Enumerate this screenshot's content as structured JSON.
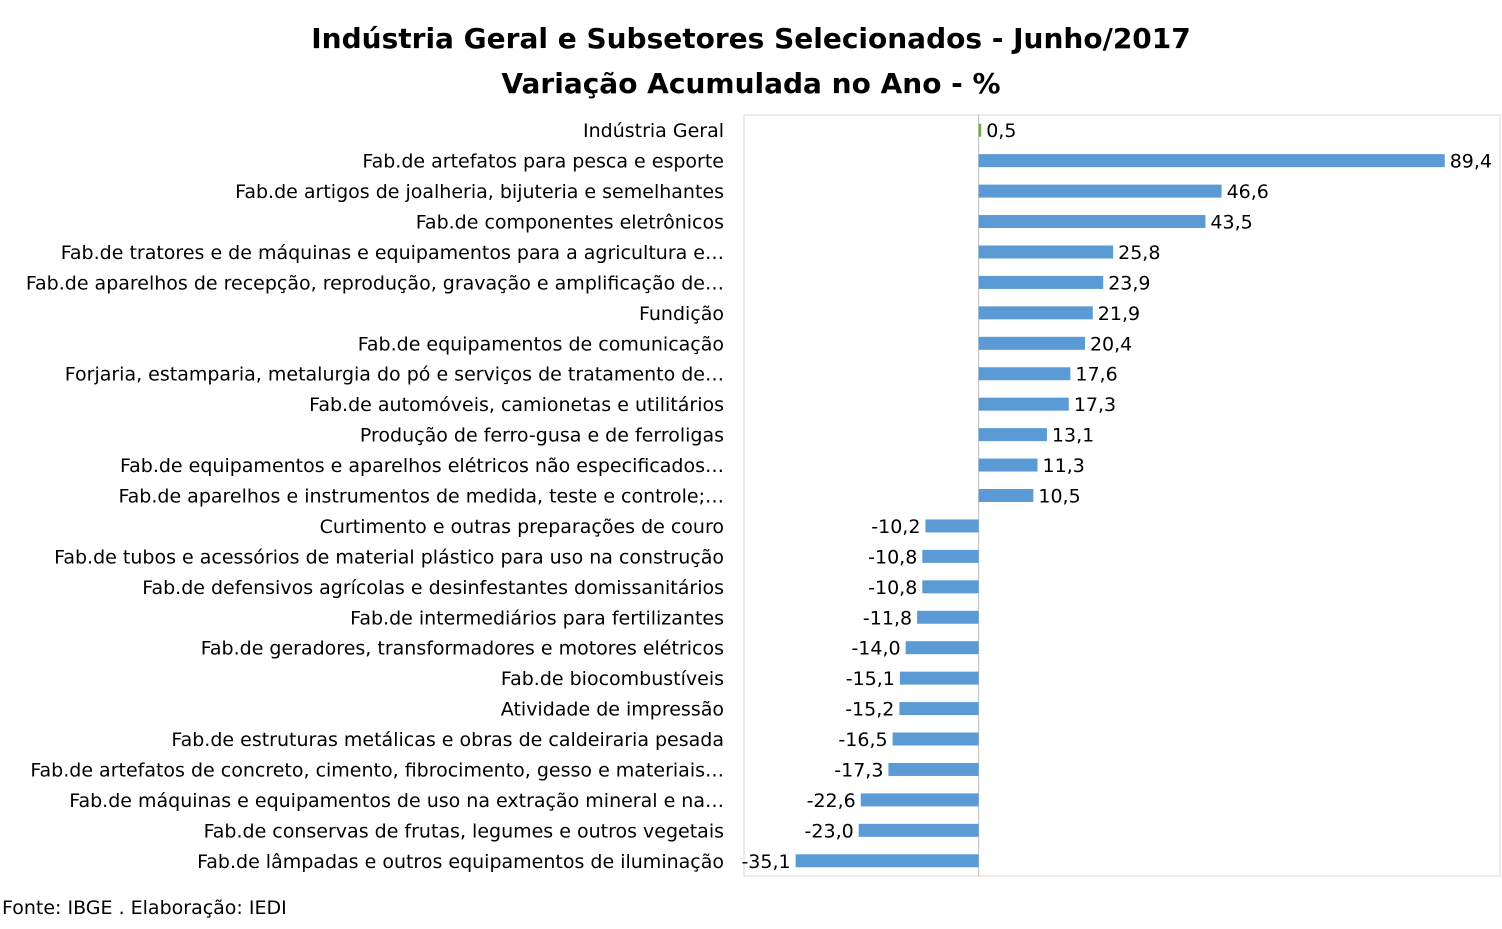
{
  "chart_data": {
    "type": "bar",
    "orientation": "horizontal",
    "title": "Indústria Geral e Subsetores Selecionados - Junho/2017",
    "subtitle": "Variação Acumulada no Ano - %",
    "categories": [
      "Indústria Geral",
      "Fab.de artefatos para pesca e esporte",
      "Fab.de artigos de joalheria, bijuteria e semelhantes",
      "Fab.de componentes eletrônicos",
      "Fab.de tratores e de máquinas e equipamentos para a agricultura e…",
      "Fab.de aparelhos de recepção, reprodução, gravação e amplificação de…",
      "Fundição",
      "Fab.de equipamentos de comunicação",
      "Forjaria, estamparia, metalurgia do pó e serviços de tratamento de…",
      "Fab.de automóveis, camionetas e utilitários",
      "Produção de ferro-gusa e de ferroligas",
      "Fab.de equipamentos e aparelhos elétricos não especificados…",
      "Fab.de aparelhos e instrumentos de medida, teste e controle;…",
      "Curtimento e outras preparações de couro",
      "Fab.de tubos e acessórios de material plástico para uso na construção",
      "Fab.de defensivos agrícolas e desinfestantes domissanitários",
      "Fab.de intermediários para fertilizantes",
      "Fab.de geradores, transformadores e motores elétricos",
      "Fab.de biocombustíveis",
      "Atividade de impressão",
      "Fab.de estruturas metálicas e obras de caldeiraria pesada",
      "Fab.de artefatos de concreto, cimento, fibrocimento, gesso e materiais…",
      "Fab.de máquinas e equipamentos de uso na extração mineral e na…",
      "Fab.de conservas de frutas, legumes e outros vegetais",
      "Fab.de lâmpadas e outros equipamentos de iluminação"
    ],
    "values": [
      0.5,
      89.4,
      46.6,
      43.5,
      25.8,
      23.9,
      21.9,
      20.4,
      17.6,
      17.3,
      13.1,
      11.3,
      10.5,
      -10.2,
      -10.8,
      -10.8,
      -11.8,
      -14.0,
      -15.1,
      -15.2,
      -16.5,
      -17.3,
      -22.6,
      -23.0,
      -35.1
    ],
    "value_labels": [
      "0,5",
      "89,4",
      "46,6",
      "43,5",
      "25,8",
      "23,9",
      "21,9",
      "20,4",
      "17,6",
      "17,3",
      "13,1",
      "11,3",
      "10,5",
      "-10,2",
      "-10,8",
      "-10,8",
      "-11,8",
      "-14,0",
      "-15,1",
      "-15,2",
      "-16,5",
      "-17,3",
      "-22,6",
      "-23,0",
      "-35,1"
    ],
    "xlim": [
      -45,
      100
    ],
    "grid": false,
    "legend": "none",
    "colors": {
      "highlight": "#70ad47",
      "bars": "#5b9bd5",
      "axis": "#bfbfbf",
      "plot_border": "#d9d9d9"
    }
  },
  "source": "Fonte: IBGE . Elaboração: IEDI"
}
